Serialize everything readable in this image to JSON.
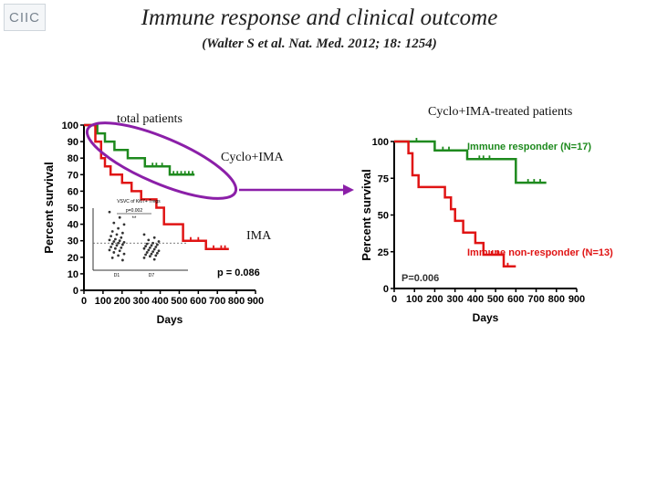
{
  "header": {
    "logo_text": "CIIC",
    "title": "Immune response and clinical outcome",
    "subtitle": "(Walter S et al. Nat. Med. 2012; 18: 1254)"
  },
  "annotations": {
    "total_patients": "total patients",
    "cyclo_ima": "Cyclo+IMA",
    "ima": "IMA",
    "cyclo_ima_treated": "Cyclo+IMA-treated patients"
  },
  "colors": {
    "green": "#1e8a1e",
    "red": "#e01414",
    "highlight": "#8b1fa8",
    "arrow": "#8b1fa8",
    "axis": "#000000"
  },
  "chart_data": [
    {
      "type": "line",
      "subtype": "kaplan-meier",
      "title": "total patients",
      "xlabel": "Days",
      "ylabel": "Percent survival",
      "xlim": [
        0,
        900
      ],
      "ylim": [
        0,
        100
      ],
      "x_ticks": [
        0,
        100,
        200,
        300,
        400,
        500,
        600,
        700,
        800,
        900
      ],
      "y_ticks": [
        0,
        10,
        20,
        30,
        40,
        50,
        60,
        70,
        80,
        90,
        100
      ],
      "p_value_label": "p = 0.086",
      "series": [
        {
          "name": "Cyclo+IMA",
          "color": "green",
          "steps": [
            [
              0,
              100
            ],
            [
              70,
              100
            ],
            [
              70,
              95
            ],
            [
              110,
              95
            ],
            [
              110,
              90
            ],
            [
              160,
              90
            ],
            [
              160,
              85
            ],
            [
              230,
              85
            ],
            [
              230,
              80
            ],
            [
              320,
              80
            ],
            [
              320,
              75
            ],
            [
              450,
              75
            ],
            [
              450,
              70
            ],
            [
              580,
              70
            ]
          ],
          "censor_x": [
            360,
            380,
            410,
            470,
            490,
            510,
            530,
            550,
            570
          ]
        },
        {
          "name": "IMA",
          "color": "red",
          "steps": [
            [
              0,
              100
            ],
            [
              60,
              100
            ],
            [
              60,
              90
            ],
            [
              90,
              90
            ],
            [
              90,
              80
            ],
            [
              110,
              80
            ],
            [
              110,
              75
            ],
            [
              140,
              75
            ],
            [
              140,
              70
            ],
            [
              200,
              70
            ],
            [
              200,
              65
            ],
            [
              250,
              65
            ],
            [
              250,
              60
            ],
            [
              300,
              60
            ],
            [
              300,
              55
            ],
            [
              380,
              55
            ],
            [
              380,
              50
            ],
            [
              420,
              50
            ],
            [
              420,
              40
            ],
            [
              520,
              40
            ],
            [
              520,
              30
            ],
            [
              640,
              30
            ],
            [
              640,
              25
            ],
            [
              760,
              25
            ]
          ],
          "censor_x": [
            560,
            600,
            680,
            720,
            740
          ]
        }
      ]
    },
    {
      "type": "scatter",
      "title": "VSVC of Ki67+ Tregs",
      "categories": [
        "D1",
        "D7"
      ],
      "p_value_label": "p=0.002",
      "significance": "**",
      "series": [
        {
          "name": "D1",
          "values": [
            7.5,
            6.8,
            6.1,
            5.9,
            5.4,
            5.0,
            4.8,
            4.6,
            4.4,
            4.2,
            4.0,
            3.9,
            3.8,
            3.7,
            3.6,
            3.5,
            3.4,
            3.3,
            3.2,
            3.0,
            2.9,
            2.8,
            2.6,
            2.5,
            2.3,
            2.1,
            1.9,
            1.6,
            1.3
          ]
        },
        {
          "name": "D7",
          "values": [
            4.6,
            4.2,
            3.9,
            3.7,
            3.5,
            3.4,
            3.3,
            3.2,
            3.1,
            3.0,
            2.9,
            2.8,
            2.7,
            2.6,
            2.5,
            2.4,
            2.3,
            2.2,
            2.1,
            2.0,
            1.9,
            1.8,
            1.6,
            1.4
          ]
        }
      ]
    },
    {
      "type": "line",
      "subtype": "kaplan-meier",
      "title": "Cyclo+IMA-treated patients",
      "xlabel": "Days",
      "ylabel": "Percent survival",
      "xlim": [
        0,
        900
      ],
      "ylim": [
        0,
        100
      ],
      "x_ticks": [
        0,
        100,
        200,
        300,
        400,
        500,
        600,
        700,
        800,
        900
      ],
      "y_ticks": [
        0,
        25,
        50,
        75,
        100
      ],
      "p_value_label": "P=0.006",
      "series": [
        {
          "name": "Immune responder (N=17)",
          "color": "green",
          "steps": [
            [
              0,
              100
            ],
            [
              200,
              100
            ],
            [
              200,
              94
            ],
            [
              360,
              94
            ],
            [
              360,
              88
            ],
            [
              600,
              88
            ],
            [
              600,
              72
            ],
            [
              750,
              72
            ]
          ],
          "censor_x": [
            110,
            240,
            270,
            420,
            440,
            470,
            660,
            690,
            720
          ]
        },
        {
          "name": "Immune non-responder (N=13)",
          "color": "red",
          "steps": [
            [
              0,
              100
            ],
            [
              70,
              100
            ],
            [
              70,
              92
            ],
            [
              90,
              92
            ],
            [
              90,
              77
            ],
            [
              120,
              77
            ],
            [
              120,
              69
            ],
            [
              250,
              69
            ],
            [
              250,
              62
            ],
            [
              280,
              62
            ],
            [
              280,
              54
            ],
            [
              300,
              54
            ],
            [
              300,
              46
            ],
            [
              340,
              46
            ],
            [
              340,
              38
            ],
            [
              400,
              38
            ],
            [
              400,
              31
            ],
            [
              440,
              31
            ],
            [
              440,
              23
            ],
            [
              540,
              23
            ],
            [
              540,
              15
            ],
            [
              600,
              15
            ]
          ],
          "censor_x": [
            480,
            510,
            560
          ]
        }
      ]
    }
  ]
}
